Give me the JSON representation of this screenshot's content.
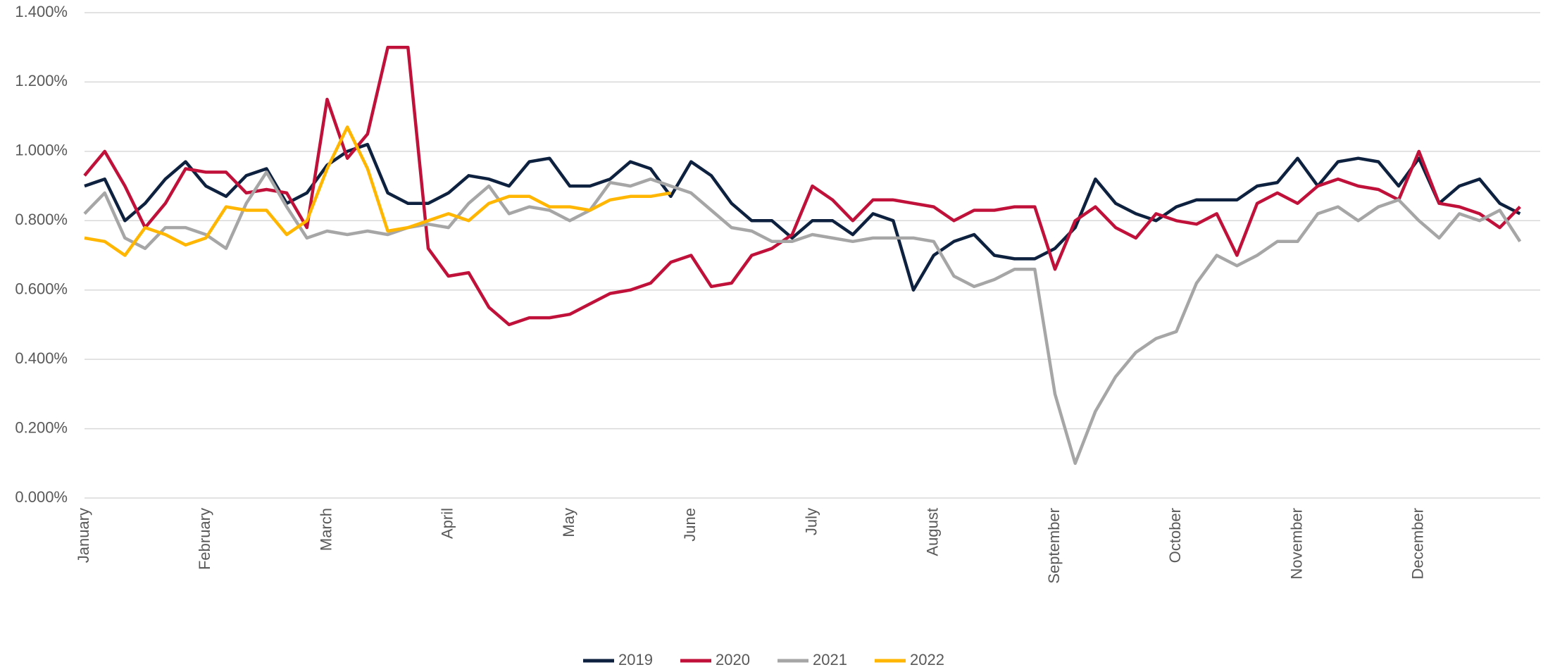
{
  "chart_data": {
    "type": "line",
    "categories": [
      "January",
      null,
      null,
      null,
      null,
      null,
      "February",
      null,
      null,
      null,
      null,
      null,
      "March",
      null,
      null,
      null,
      null,
      null,
      "April",
      null,
      null,
      null,
      null,
      null,
      "May",
      null,
      null,
      null,
      null,
      null,
      "June",
      null,
      null,
      null,
      null,
      null,
      "July",
      null,
      null,
      null,
      null,
      null,
      "August",
      null,
      null,
      null,
      null,
      null,
      "September",
      null,
      null,
      null,
      null,
      null,
      "October",
      null,
      null,
      null,
      null,
      null,
      "November",
      null,
      null,
      null,
      null,
      null,
      "December",
      null,
      null,
      null,
      null,
      null
    ],
    "series": [
      {
        "name": "2019",
        "color": "#0e2240",
        "values": [
          0.9,
          0.92,
          0.8,
          0.85,
          0.92,
          0.97,
          0.9,
          0.87,
          0.93,
          0.95,
          0.85,
          0.88,
          0.96,
          1.0,
          1.02,
          0.88,
          0.85,
          0.85,
          0.88,
          0.93,
          0.92,
          0.9,
          0.97,
          0.98,
          0.9,
          0.9,
          0.92,
          0.97,
          0.95,
          0.87,
          0.97,
          0.93,
          0.85,
          0.8,
          0.8,
          0.75,
          0.8,
          0.8,
          0.76,
          0.82,
          0.8,
          0.6,
          0.7,
          0.74,
          0.76,
          0.7,
          0.69,
          0.69,
          0.72,
          0.78,
          0.92,
          0.85,
          0.82,
          0.8,
          0.84,
          0.86,
          0.86,
          0.86,
          0.9,
          0.91,
          0.98,
          0.9,
          0.97,
          0.98,
          0.97,
          0.9,
          0.98,
          0.85,
          0.9,
          0.92,
          0.85,
          0.82
        ]
      },
      {
        "name": "2020",
        "color": "#c0113a",
        "values": [
          0.93,
          1.0,
          0.9,
          0.78,
          0.85,
          0.95,
          0.94,
          0.94,
          0.88,
          0.89,
          0.88,
          0.78,
          1.15,
          0.98,
          1.05,
          1.3,
          1.3,
          0.72,
          0.64,
          0.65,
          0.55,
          0.5,
          0.52,
          0.52,
          0.53,
          0.56,
          0.59,
          0.6,
          0.62,
          0.68,
          0.7,
          0.61,
          0.62,
          0.7,
          0.72,
          0.76,
          0.9,
          0.86,
          0.8,
          0.86,
          0.86,
          0.85,
          0.84,
          0.8,
          0.83,
          0.83,
          0.84,
          0.84,
          0.66,
          0.8,
          0.84,
          0.78,
          0.75,
          0.82,
          0.8,
          0.79,
          0.82,
          0.7,
          0.85,
          0.88,
          0.85,
          0.9,
          0.92,
          0.9,
          0.89,
          0.86,
          1.0,
          0.85,
          0.84,
          0.82,
          0.78,
          0.84
        ]
      },
      {
        "name": "2021",
        "color": "#a6a6a6",
        "values": [
          0.82,
          0.88,
          0.75,
          0.72,
          0.78,
          0.78,
          0.76,
          0.72,
          0.85,
          0.94,
          0.84,
          0.75,
          0.77,
          0.76,
          0.77,
          0.76,
          0.78,
          0.79,
          0.78,
          0.85,
          0.9,
          0.82,
          0.84,
          0.83,
          0.8,
          0.83,
          0.91,
          0.9,
          0.92,
          0.9,
          0.88,
          0.83,
          0.78,
          0.77,
          0.74,
          0.74,
          0.76,
          0.75,
          0.74,
          0.75,
          0.75,
          0.75,
          0.74,
          0.64,
          0.61,
          0.63,
          0.66,
          0.66,
          0.3,
          0.1,
          0.25,
          0.35,
          0.42,
          0.46,
          0.48,
          0.62,
          0.7,
          0.67,
          0.7,
          0.74,
          0.74,
          0.82,
          0.84,
          0.8,
          0.84,
          0.86,
          0.8,
          0.75,
          0.82,
          0.8,
          0.83,
          0.74
        ]
      },
      {
        "name": "2022",
        "color": "#ffb600",
        "values": [
          0.75,
          0.74,
          0.7,
          0.78,
          0.76,
          0.73,
          0.75,
          0.84,
          0.83,
          0.83,
          0.76,
          0.8,
          0.95,
          1.07,
          0.95,
          0.77,
          0.78,
          0.8,
          0.82,
          0.8,
          0.85,
          0.87,
          0.87,
          0.84,
          0.84,
          0.83,
          0.86,
          0.87,
          0.87,
          0.88,
          null,
          null,
          null,
          null,
          null,
          null,
          null,
          null,
          null,
          null,
          null,
          null,
          null,
          null,
          null,
          null,
          null,
          null,
          null,
          null,
          null,
          null,
          null,
          null,
          null,
          null,
          null,
          null,
          null,
          null,
          null,
          null,
          null,
          null,
          null,
          null,
          null,
          null,
          null,
          null,
          null,
          null
        ]
      }
    ],
    "ylim": [
      0,
      1.4
    ],
    "yticks": [
      {
        "value": 0,
        "label": "0.000%"
      },
      {
        "value": 0.2,
        "label": "0.200%"
      },
      {
        "value": 0.4,
        "label": "0.400%"
      },
      {
        "value": 0.6,
        "label": "0.600%"
      },
      {
        "value": 0.8,
        "label": "0.800%"
      },
      {
        "value": 1.0,
        "label": "1.000%"
      },
      {
        "value": 1.2,
        "label": "1.200%"
      },
      {
        "value": 1.4,
        "label": "1.400%"
      }
    ],
    "grid": true,
    "legend": "bottom"
  }
}
